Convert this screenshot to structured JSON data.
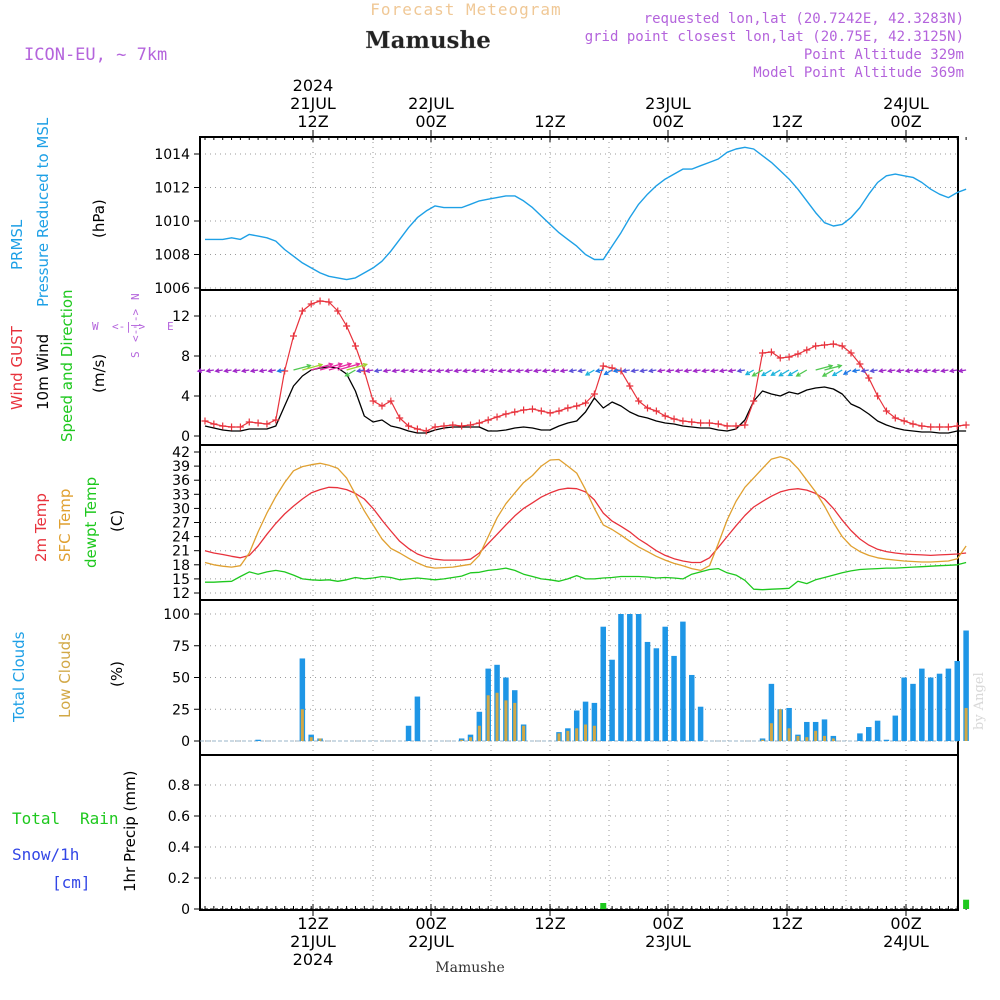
{
  "header": {
    "product": "Forecast Meteogram",
    "location": "Mamushe",
    "model": "ICON-EU, ~ 7km",
    "requested": "requested lon,lat (20.7242E, 42.3283N)",
    "gridpoint": "grid point closest lon,lat (20.75E, 42.3125N)",
    "point_alt": "Point Altitude 329m",
    "model_alt": "Model Point Altitude 369m",
    "footer_location": "Mamushe",
    "watermark": "by Angel"
  },
  "time_axis": {
    "top": [
      {
        "lines": [
          "2024",
          "21JUL",
          "12Z"
        ]
      },
      {
        "lines": [
          "22JUL",
          "00Z"
        ]
      },
      {
        "lines": [
          "12Z"
        ]
      },
      {
        "lines": [
          "23JUL",
          "00Z"
        ]
      },
      {
        "lines": [
          "12Z"
        ]
      },
      {
        "lines": [
          "24JUL",
          "00Z"
        ]
      }
    ],
    "bottom": [
      {
        "lines": [
          "12Z",
          "21JUL",
          "2024"
        ]
      },
      {
        "lines": [
          "00Z",
          "22JUL"
        ]
      },
      {
        "lines": [
          "12Z"
        ]
      },
      {
        "lines": [
          "00Z",
          "23JUL"
        ]
      },
      {
        "lines": [
          "12Z"
        ]
      },
      {
        "lines": [
          "00Z",
          "24JUL"
        ]
      }
    ]
  },
  "panels": {
    "pressure": {
      "labels": [
        "PRMSL",
        "Pressure Reduced to MSL",
        "(hPa)"
      ],
      "ticks": [
        "1006",
        "1008",
        "1010",
        "1012",
        "1014"
      ]
    },
    "wind": {
      "labels": [
        "Wind GUST",
        "10m Wind",
        "Speed and Direction",
        "(m/s)"
      ],
      "ticks": [
        "0",
        "4",
        "8",
        "12"
      ],
      "compass": {
        "w": "W",
        "e": "E",
        "n": "N",
        "s": "S",
        "arrows": "<-|->"
      }
    },
    "temp": {
      "labels": [
        "2m Temp",
        "SFC Temp",
        "dewpt Temp",
        "(C)"
      ],
      "ticks": [
        "12",
        "15",
        "18",
        "21",
        "24",
        "27",
        "30",
        "33",
        "36",
        "39",
        "42"
      ]
    },
    "clouds": {
      "labels": [
        "Total Clouds",
        "Low Clouds",
        "(%)"
      ],
      "ticks": [
        "0",
        "25",
        "50",
        "75",
        "100"
      ]
    },
    "precip": {
      "labels": [
        "Total",
        "Rain",
        "Snow/1h",
        "[cm]",
        "1hr Precip (mm)"
      ],
      "ticks": [
        "0",
        "0.2",
        "0.4",
        "0.6",
        "0.8"
      ]
    }
  },
  "colors": {
    "pressure": "#1ea0e6",
    "gust": "#e8323c",
    "wind": "#000000",
    "t2m": "#e8323c",
    "tsfc": "#e0a030",
    "dewpt": "#1ec81e",
    "total_clouds": "#1e96e6",
    "low_clouds": "#d2a846",
    "rain": "#1ec81e",
    "snow": "#3246e6",
    "purple": "#b464dc",
    "orange_title": "#f0c896"
  },
  "chart_data": {
    "type": "line",
    "x_start": "2024-07-21 01Z",
    "x_end": "2024-07-24 03Z",
    "x_step_hours": 1,
    "pressure_hPa": [
      1008.9,
      1008.9,
      1008.9,
      1009.0,
      1008.9,
      1009.2,
      1009.1,
      1009.0,
      1008.8,
      1008.3,
      1007.9,
      1007.5,
      1007.2,
      1006.9,
      1006.7,
      1006.6,
      1006.5,
      1006.6,
      1006.9,
      1007.2,
      1007.6,
      1008.2,
      1008.9,
      1009.6,
      1010.2,
      1010.6,
      1010.9,
      1010.8,
      1010.8,
      1010.8,
      1011.0,
      1011.2,
      1011.3,
      1011.4,
      1011.5,
      1011.5,
      1011.2,
      1010.8,
      1010.3,
      1009.8,
      1009.3,
      1008.9,
      1008.5,
      1008.0,
      1007.7,
      1007.7,
      1008.5,
      1009.3,
      1010.2,
      1011.0,
      1011.6,
      1012.1,
      1012.5,
      1012.8,
      1013.1,
      1013.1,
      1013.3,
      1013.5,
      1013.7,
      1014.1,
      1014.3,
      1014.4,
      1014.3,
      1013.9,
      1013.5,
      1013.0,
      1012.5,
      1011.9,
      1011.2,
      1010.5,
      1009.9,
      1009.7,
      1009.8,
      1010.2,
      1010.8,
      1011.6,
      1012.3,
      1012.7,
      1012.8,
      1012.7,
      1012.6,
      1012.3,
      1011.9,
      1011.6,
      1011.4,
      1011.7,
      1011.9
    ],
    "gust_ms": [
      1.5,
      1.2,
      1.0,
      0.9,
      0.9,
      1.4,
      1.3,
      1.2,
      1.6,
      6.5,
      10.0,
      12.5,
      13.2,
      13.5,
      13.4,
      12.5,
      11.0,
      9.0,
      6.5,
      3.5,
      3.0,
      3.5,
      1.8,
      1.0,
      0.7,
      0.5,
      0.9,
      1.0,
      1.1,
      1.0,
      1.1,
      1.3,
      1.6,
      1.9,
      2.2,
      2.4,
      2.6,
      2.7,
      2.5,
      2.3,
      2.5,
      2.8,
      3.0,
      3.3,
      4.2,
      7.0,
      6.8,
      6.5,
      5.0,
      3.5,
      2.8,
      2.5,
      2.0,
      1.7,
      1.5,
      1.4,
      1.3,
      1.3,
      1.2,
      1.0,
      1.0,
      1.1,
      3.5,
      8.3,
      8.4,
      7.8,
      7.9,
      8.2,
      8.6,
      9.0,
      9.1,
      9.2,
      9.0,
      8.3,
      7.2,
      5.8,
      4.0,
      2.5,
      1.8,
      1.5,
      1.2,
      1.0,
      0.9,
      0.9,
      0.9,
      1.0,
      1.1
    ],
    "wind_ms": [
      1.0,
      0.8,
      0.6,
      0.5,
      0.5,
      0.7,
      0.7,
      0.7,
      1.0,
      3.0,
      5.0,
      6.0,
      6.6,
      6.8,
      6.9,
      6.8,
      6.2,
      4.5,
      2.0,
      1.4,
      1.6,
      1.0,
      0.8,
      0.5,
      0.3,
      0.3,
      0.6,
      0.8,
      0.9,
      0.9,
      0.9,
      0.9,
      0.5,
      0.5,
      0.6,
      0.8,
      0.9,
      0.8,
      0.6,
      0.6,
      1.0,
      1.3,
      1.5,
      2.4,
      3.8,
      2.8,
      3.4,
      3.0,
      2.4,
      2.0,
      1.8,
      1.5,
      1.3,
      1.2,
      1.0,
      0.9,
      0.8,
      0.8,
      0.6,
      0.5,
      0.7,
      1.6,
      3.5,
      4.5,
      4.2,
      4.0,
      4.4,
      4.2,
      4.6,
      4.8,
      4.9,
      4.7,
      4.2,
      3.2,
      2.8,
      2.2,
      1.5,
      1.1,
      0.8,
      0.6,
      0.5,
      0.4,
      0.4,
      0.3,
      0.3,
      0.5,
      0.5
    ],
    "t2m_c": [
      21.0,
      20.5,
      20.2,
      19.8,
      19.5,
      20.0,
      22.0,
      24.5,
      26.8,
      28.8,
      30.5,
      32.0,
      33.3,
      34.0,
      34.5,
      34.4,
      34.0,
      33.2,
      32.0,
      30.0,
      27.5,
      25.2,
      23.0,
      21.5,
      20.3,
      19.6,
      19.2,
      19.0,
      19.0,
      19.0,
      19.2,
      20.5,
      22.5,
      24.5,
      26.5,
      28.4,
      30.0,
      31.2,
      32.4,
      33.3,
      34.0,
      34.3,
      34.2,
      33.5,
      31.8,
      29.0,
      27.3,
      26.2,
      25.0,
      23.5,
      22.3,
      21.0,
      20.0,
      19.3,
      18.8,
      18.5,
      18.5,
      19.5,
      21.7,
      24.0,
      26.3,
      28.5,
      30.3,
      31.5,
      32.6,
      33.5,
      34.0,
      34.2,
      33.9,
      33.2,
      32.0,
      30.0,
      27.5,
      25.3,
      23.5,
      22.2,
      21.3,
      20.8,
      20.5,
      20.3,
      20.2,
      20.1,
      20.0,
      20.1,
      20.2,
      20.3,
      20.5
    ],
    "tsfc_c": [
      18.5,
      18.0,
      17.7,
      17.5,
      17.8,
      20.5,
      25.0,
      29.0,
      32.5,
      35.5,
      38.0,
      38.9,
      39.3,
      39.6,
      39.2,
      38.5,
      36.5,
      33.0,
      29.5,
      26.5,
      23.5,
      21.5,
      20.5,
      19.4,
      18.4,
      17.6,
      17.3,
      17.4,
      17.5,
      17.8,
      18.1,
      20.0,
      24.0,
      28.0,
      31.0,
      33.3,
      35.5,
      37.0,
      39.0,
      40.3,
      40.4,
      39.0,
      37.5,
      34.0,
      30.0,
      26.5,
      25.5,
      24.3,
      23.0,
      21.8,
      20.8,
      19.8,
      19.0,
      18.3,
      17.8,
      17.2,
      16.8,
      17.8,
      22.5,
      27.5,
      31.5,
      34.5,
      36.5,
      38.5,
      40.5,
      41.0,
      40.4,
      38.5,
      36.0,
      33.5,
      30.5,
      27.0,
      24.0,
      22.0,
      20.8,
      20.0,
      19.5,
      19.2,
      19.0,
      18.8,
      18.7,
      18.6,
      18.6,
      18.7,
      18.8,
      19.3,
      22.0
    ],
    "dewpt_c": [
      14.3,
      14.3,
      14.4,
      14.5,
      15.5,
      16.5,
      16.0,
      16.5,
      16.8,
      16.5,
      15.8,
      15.0,
      14.8,
      14.7,
      14.8,
      14.5,
      14.8,
      15.3,
      15.0,
      15.2,
      15.5,
      15.3,
      14.8,
      15.0,
      15.2,
      15.0,
      14.8,
      15.0,
      15.3,
      15.6,
      16.3,
      16.4,
      16.8,
      17.0,
      17.3,
      16.8,
      16.0,
      15.5,
      15.0,
      14.8,
      14.5,
      15.0,
      15.7,
      15.0,
      15.0,
      15.2,
      15.3,
      15.5,
      15.5,
      15.5,
      15.4,
      15.2,
      15.3,
      15.2,
      15.0,
      16.0,
      16.5,
      17.0,
      17.2,
      16.3,
      15.8,
      14.7,
      12.8,
      12.7,
      12.8,
      12.9,
      13.0,
      14.5,
      14.0,
      14.8,
      15.3,
      15.8,
      16.3,
      16.7,
      17.0,
      17.1,
      17.2,
      17.3,
      17.3,
      17.4,
      17.5,
      17.6,
      17.7,
      17.8,
      17.9,
      18.0,
      18.5
    ],
    "total_clouds_pct": [
      0,
      0,
      0,
      0,
      0,
      0,
      1,
      0,
      0,
      0,
      0,
      65,
      5,
      2,
      0,
      0,
      0,
      0,
      0,
      0,
      0,
      0,
      0,
      12,
      35,
      0,
      0,
      0,
      0,
      2,
      5,
      23,
      57,
      60,
      50,
      40,
      13,
      0,
      0,
      0,
      7,
      10,
      24,
      31,
      30,
      90,
      64,
      100,
      100,
      100,
      78,
      73,
      90,
      67,
      94,
      52,
      27,
      0,
      0,
      0,
      0,
      0,
      0,
      2,
      45,
      25,
      26,
      5,
      15,
      15,
      17,
      4,
      0,
      0,
      6,
      11,
      16,
      1,
      20,
      50,
      45,
      57,
      50,
      53,
      57,
      63,
      87
    ],
    "low_clouds_pct": [
      0,
      0,
      0,
      0,
      0,
      0,
      0,
      0,
      0,
      0,
      0,
      25,
      3,
      2,
      0,
      0,
      0,
      0,
      0,
      0,
      0,
      0,
      0,
      0,
      0,
      0,
      0,
      0,
      0,
      1,
      3,
      12,
      36,
      38,
      32,
      30,
      12,
      0,
      0,
      0,
      6,
      8,
      10,
      13,
      12,
      0,
      0,
      0,
      0,
      0,
      0,
      0,
      0,
      0,
      0,
      0,
      0,
      0,
      0,
      0,
      0,
      0,
      0,
      1,
      14,
      25,
      10,
      4,
      3,
      8,
      4,
      2,
      0,
      0,
      0,
      0,
      0,
      0,
      0,
      0,
      0,
      0,
      0,
      0,
      0,
      0,
      26
    ],
    "rain_mm": [
      0,
      0,
      0,
      0,
      0,
      0,
      0,
      0,
      0,
      0,
      0,
      0,
      0,
      0,
      0,
      0,
      0,
      0,
      0,
      0,
      0,
      0,
      0,
      0,
      0,
      0,
      0,
      0,
      0,
      0,
      0,
      0,
      0,
      0,
      0,
      0,
      0,
      0,
      0,
      0,
      0,
      0,
      0,
      0,
      0,
      0.03,
      0,
      0,
      0,
      0,
      0,
      0,
      0,
      0,
      0,
      0,
      0,
      0,
      0,
      0,
      0,
      0,
      0,
      0,
      0,
      0,
      0,
      0,
      0,
      0,
      0,
      0,
      0,
      0,
      0,
      0,
      0,
      0,
      0,
      0,
      0,
      0,
      0,
      0,
      0,
      0,
      0.06
    ],
    "pressure_range": [
      1006,
      1014.6
    ],
    "wind_range": [
      0,
      14
    ],
    "temp_range": [
      12,
      42
    ],
    "cloud_range": [
      0,
      100
    ],
    "precip_range": [
      0,
      0.95
    ]
  }
}
